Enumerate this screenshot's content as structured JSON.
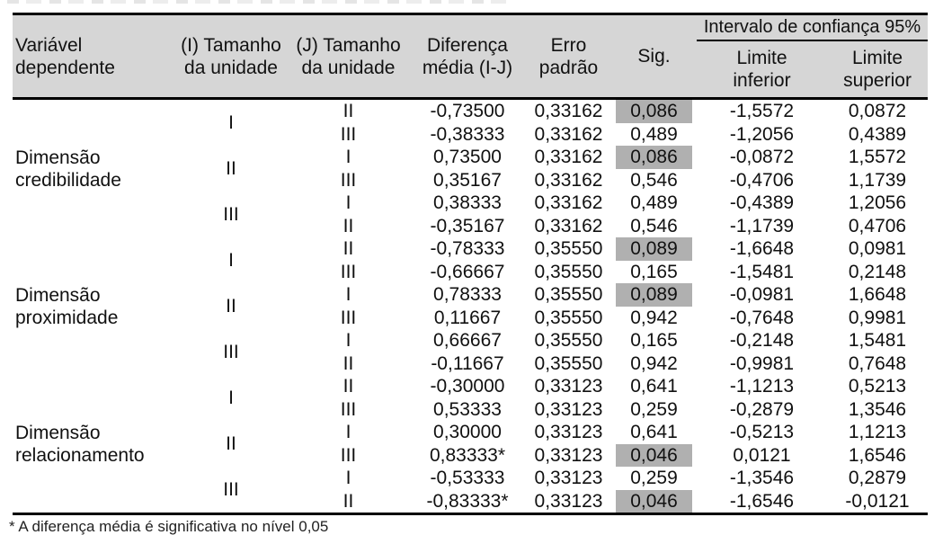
{
  "colors": {
    "header_bg": "#d6d6d6",
    "sig_highlight": "#b0b0b0",
    "border": "#000000",
    "text": "#111111"
  },
  "table": {
    "header": {
      "variable": "Variável\ndependente",
      "i": "(I) Tamanho\nda unidade",
      "j": "(J) Tamanho\nda unidade",
      "diff": "Diferença\nmédia (I-J)",
      "se": "Erro\npadrão",
      "sig": "Sig.",
      "ci_group": "Intervalo de confiança 95%",
      "ci_lower": "Limite\ninferior",
      "ci_upper": "Limite\nsuperior"
    },
    "variables": [
      "Dimensão\ncredibilidade",
      "Dimensão\nproximidade",
      "Dimensão\nrelacionamento"
    ],
    "i_labels": [
      "I",
      "II",
      "III",
      "I",
      "II",
      "III",
      "I",
      "II",
      "III"
    ],
    "rows": [
      {
        "j": "II",
        "diff": "-0,73500",
        "se": "0,33162",
        "sig": "0,086",
        "ci_lower": "-1,5572",
        "ci_upper": "0,0872",
        "sig_highlighted": true
      },
      {
        "j": "III",
        "diff": "-0,38333",
        "se": "0,33162",
        "sig": "0,489",
        "ci_lower": "-1,2056",
        "ci_upper": "0,4389",
        "sig_highlighted": false
      },
      {
        "j": "I",
        "diff": "0,73500",
        "se": "0,33162",
        "sig": "0,086",
        "ci_lower": "-0,0872",
        "ci_upper": "1,5572",
        "sig_highlighted": true
      },
      {
        "j": "III",
        "diff": "0,35167",
        "se": "0,33162",
        "sig": "0,546",
        "ci_lower": "-0,4706",
        "ci_upper": "1,1739",
        "sig_highlighted": false
      },
      {
        "j": "I",
        "diff": "0,38333",
        "se": "0,33162",
        "sig": "0,489",
        "ci_lower": "-0,4389",
        "ci_upper": "1,2056",
        "sig_highlighted": false
      },
      {
        "j": "II",
        "diff": "-0,35167",
        "se": "0,33162",
        "sig": "0,546",
        "ci_lower": "-1,1739",
        "ci_upper": "0,4706",
        "sig_highlighted": false
      },
      {
        "j": "II",
        "diff": "-0,78333",
        "se": "0,35550",
        "sig": "0,089",
        "ci_lower": "-1,6648",
        "ci_upper": "0,0981",
        "sig_highlighted": true
      },
      {
        "j": "III",
        "diff": "-0,66667",
        "se": "0,35550",
        "sig": "0,165",
        "ci_lower": "-1,5481",
        "ci_upper": "0,2148",
        "sig_highlighted": false
      },
      {
        "j": "I",
        "diff": "0,78333",
        "se": "0,35550",
        "sig": "0,089",
        "ci_lower": "-0,0981",
        "ci_upper": "1,6648",
        "sig_highlighted": true
      },
      {
        "j": "III",
        "diff": "0,11667",
        "se": "0,35550",
        "sig": "0,942",
        "ci_lower": "-0,7648",
        "ci_upper": "0,9981",
        "sig_highlighted": false
      },
      {
        "j": "I",
        "diff": "0,66667",
        "se": "0,35550",
        "sig": "0,165",
        "ci_lower": "-0,2148",
        "ci_upper": "1,5481",
        "sig_highlighted": false
      },
      {
        "j": "II",
        "diff": "-0,11667",
        "se": "0,35550",
        "sig": "0,942",
        "ci_lower": "-0,9981",
        "ci_upper": "0,7648",
        "sig_highlighted": false
      },
      {
        "j": "II",
        "diff": "-0,30000",
        "se": "0,33123",
        "sig": "0,641",
        "ci_lower": "-1,1213",
        "ci_upper": "0,5213",
        "sig_highlighted": false
      },
      {
        "j": "III",
        "diff": "0,53333",
        "se": "0,33123",
        "sig": "0,259",
        "ci_lower": "-0,2879",
        "ci_upper": "1,3546",
        "sig_highlighted": false
      },
      {
        "j": "I",
        "diff": "0,30000",
        "se": "0,33123",
        "sig": "0,641",
        "ci_lower": "-0,5213",
        "ci_upper": "1,1213",
        "sig_highlighted": false
      },
      {
        "j": "III",
        "diff": "0,83333*",
        "se": "0,33123",
        "sig": "0,046",
        "ci_lower": "0,0121",
        "ci_upper": "1,6546",
        "sig_highlighted": true
      },
      {
        "j": "I",
        "diff": "-0,53333",
        "se": "0,33123",
        "sig": "0,259",
        "ci_lower": "-1,3546",
        "ci_upper": "0,2879",
        "sig_highlighted": false
      },
      {
        "j": "II",
        "diff": "-0,83333*",
        "se": "0,33123",
        "sig": "0,046",
        "ci_lower": "-1,6546",
        "ci_upper": "-0,0121",
        "sig_highlighted": true
      }
    ],
    "footnote": "* A diferença média é significativa no nível 0,05"
  }
}
